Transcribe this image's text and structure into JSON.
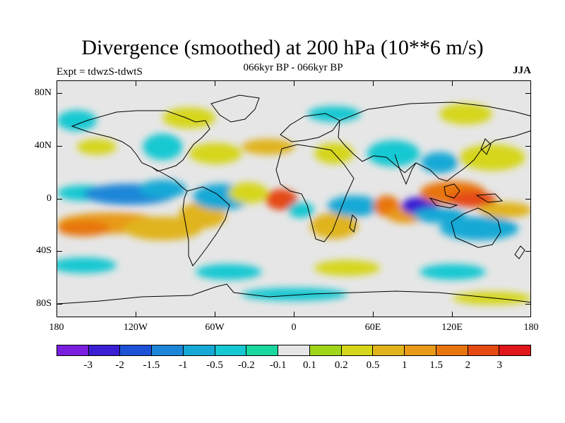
{
  "header": {
    "title": "Divergence (smoothed) at 200 hPa (10**6 m/s)",
    "subtitle": "066kyr BP - 066kyr BP",
    "experiment": "Expt = tdwzS-tdwtS",
    "season": "JJA"
  },
  "axes": {
    "y_labels": [
      "80N",
      "40N",
      "0",
      "40S",
      "80S"
    ],
    "x_labels": [
      "180",
      "120W",
      "60W",
      "0",
      "60E",
      "120E",
      "180"
    ]
  },
  "colorbar": {
    "colors": [
      "#7a1fe0",
      "#3a1fd2",
      "#1d52d6",
      "#1e86d8",
      "#16a9d6",
      "#16c8d2",
      "#1ad8a0",
      "#e6e6e6",
      "#a0d61a",
      "#d6d61a",
      "#e0b41a",
      "#e89a18",
      "#e8760f",
      "#e44a12",
      "#e0161a"
    ],
    "labels": [
      "-3",
      "-2",
      "-1.5",
      "-1",
      "-0.5",
      "-0.2",
      "-0.1",
      "0.1",
      "0.2",
      "0.5",
      "1",
      "1.5",
      "2",
      "3"
    ]
  },
  "field_blobs": [
    {
      "lon": -160,
      "lat": 5,
      "rx": 20,
      "ry": 6,
      "v": -0.3
    },
    {
      "lon": -125,
      "lat": 4,
      "rx": 35,
      "ry": 8,
      "v": -1.2
    },
    {
      "lon": -100,
      "lat": 8,
      "rx": 18,
      "ry": 7,
      "v": -0.6
    },
    {
      "lon": -140,
      "lat": -18,
      "rx": 40,
      "ry": 8,
      "v": 1.3
    },
    {
      "lon": -160,
      "lat": -22,
      "rx": 20,
      "ry": 6,
      "v": 1.7
    },
    {
      "lon": -100,
      "lat": -22,
      "rx": 30,
      "ry": 9,
      "v": 0.8
    },
    {
      "lon": -70,
      "lat": -12,
      "rx": 18,
      "ry": 10,
      "v": 0.6
    },
    {
      "lon": -55,
      "lat": 2,
      "rx": 22,
      "ry": 10,
      "v": -0.5
    },
    {
      "lon": -10,
      "lat": 0,
      "rx": 12,
      "ry": 8,
      "v": 2.4
    },
    {
      "lon": -35,
      "lat": 5,
      "rx": 15,
      "ry": 8,
      "v": 0.4
    },
    {
      "lon": 5,
      "lat": -8,
      "rx": 10,
      "ry": 6,
      "v": -0.4
    },
    {
      "lon": 30,
      "lat": -20,
      "rx": 18,
      "ry": 10,
      "v": 1.0
    },
    {
      "lon": 45,
      "lat": -5,
      "rx": 20,
      "ry": 8,
      "v": -0.6
    },
    {
      "lon": 70,
      "lat": -5,
      "rx": 10,
      "ry": 8,
      "v": 2.0
    },
    {
      "lon": 85,
      "lat": -12,
      "rx": 15,
      "ry": 6,
      "v": 1.2
    },
    {
      "lon": 95,
      "lat": -5,
      "rx": 14,
      "ry": 7,
      "v": -2.8
    },
    {
      "lon": 110,
      "lat": -12,
      "rx": 20,
      "ry": 6,
      "v": -0.8
    },
    {
      "lon": 120,
      "lat": 5,
      "rx": 25,
      "ry": 9,
      "v": 1.8
    },
    {
      "lon": 135,
      "lat": 0,
      "rx": 18,
      "ry": 6,
      "v": 2.7
    },
    {
      "lon": 140,
      "lat": -22,
      "rx": 30,
      "ry": 9,
      "v": -0.7
    },
    {
      "lon": 160,
      "lat": -8,
      "rx": 20,
      "ry": 6,
      "v": 0.6
    },
    {
      "lon": 110,
      "lat": 28,
      "rx": 14,
      "ry": 8,
      "v": -0.5
    },
    {
      "lon": 150,
      "lat": 32,
      "rx": 25,
      "ry": 10,
      "v": 0.5
    },
    {
      "lon": 75,
      "lat": 35,
      "rx": 20,
      "ry": 10,
      "v": -0.4
    },
    {
      "lon": 30,
      "lat": 35,
      "rx": 15,
      "ry": 8,
      "v": 0.3
    },
    {
      "lon": -20,
      "lat": 40,
      "rx": 20,
      "ry": 6,
      "v": 0.6
    },
    {
      "lon": -60,
      "lat": 35,
      "rx": 20,
      "ry": 8,
      "v": 0.4
    },
    {
      "lon": -100,
      "lat": 40,
      "rx": 15,
      "ry": 10,
      "v": -0.3
    },
    {
      "lon": -150,
      "lat": 40,
      "rx": 15,
      "ry": 6,
      "v": 0.5
    },
    {
      "lon": -165,
      "lat": 60,
      "rx": 15,
      "ry": 8,
      "v": -0.3
    },
    {
      "lon": -80,
      "lat": 62,
      "rx": 20,
      "ry": 8,
      "v": 0.3
    },
    {
      "lon": 30,
      "lat": 65,
      "rx": 20,
      "ry": 6,
      "v": -0.3
    },
    {
      "lon": 130,
      "lat": 65,
      "rx": 20,
      "ry": 8,
      "v": 0.5
    },
    {
      "lon": -160,
      "lat": -50,
      "rx": 25,
      "ry": 6,
      "v": -0.3
    },
    {
      "lon": -50,
      "lat": -55,
      "rx": 25,
      "ry": 6,
      "v": -0.3
    },
    {
      "lon": 40,
      "lat": -52,
      "rx": 25,
      "ry": 6,
      "v": 0.3
    },
    {
      "lon": 120,
      "lat": -55,
      "rx": 25,
      "ry": 6,
      "v": -0.3
    },
    {
      "lon": 0,
      "lat": -72,
      "rx": 40,
      "ry": 5,
      "v": -0.3
    },
    {
      "lon": 150,
      "lat": -75,
      "rx": 30,
      "ry": 5,
      "v": 0.3
    }
  ]
}
